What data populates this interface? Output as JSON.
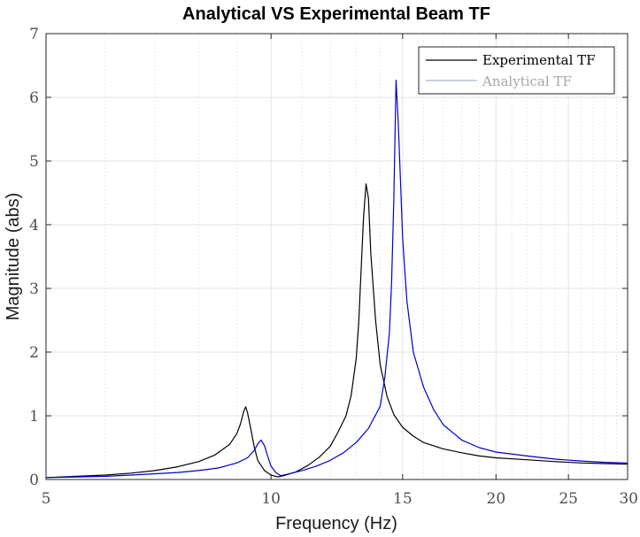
{
  "chart_data": {
    "type": "line",
    "title": "Analytical VS Experimental Beam TF",
    "xlabel": "Frequency  (Hz)",
    "ylabel": "Magnitude (abs)",
    "x_scale": "log",
    "xlim": [
      5,
      30
    ],
    "ylim": [
      0,
      7
    ],
    "x_ticks": [
      5,
      10,
      15,
      20,
      25,
      30
    ],
    "y_ticks": [
      0,
      1,
      2,
      3,
      4,
      5,
      6,
      7
    ],
    "grid": true,
    "legend": {
      "placement": "top-right"
    },
    "series": [
      {
        "name": "Experimental TF",
        "color": "#000000",
        "x": [
          5,
          5.5,
          6,
          6.5,
          7,
          7.5,
          8,
          8.4,
          8.8,
          9.0,
          9.1,
          9.2,
          9.25,
          9.3,
          9.4,
          9.5,
          9.6,
          9.8,
          10.0,
          10.2,
          10.4,
          10.8,
          11.2,
          11.6,
          12.0,
          12.3,
          12.6,
          12.8,
          13.0,
          13.1,
          13.2,
          13.3,
          13.4,
          13.5,
          13.6,
          13.8,
          14.0,
          14.3,
          14.6,
          15.0,
          15.5,
          16,
          17,
          18,
          19,
          20,
          22,
          24,
          26,
          28,
          30
        ],
        "y": [
          0.03,
          0.05,
          0.07,
          0.1,
          0.14,
          0.2,
          0.28,
          0.38,
          0.55,
          0.72,
          0.87,
          1.08,
          1.14,
          1.05,
          0.78,
          0.5,
          0.3,
          0.14,
          0.07,
          0.04,
          0.06,
          0.12,
          0.22,
          0.35,
          0.52,
          0.75,
          1.0,
          1.32,
          1.9,
          2.45,
          3.3,
          4.12,
          4.64,
          4.42,
          3.55,
          2.5,
          1.8,
          1.3,
          1.02,
          0.82,
          0.68,
          0.58,
          0.48,
          0.42,
          0.37,
          0.34,
          0.31,
          0.28,
          0.26,
          0.25,
          0.24
        ]
      },
      {
        "name": "Analytical TF",
        "color": "#0000cc",
        "x": [
          5,
          5.5,
          6,
          6.5,
          7,
          7.5,
          8,
          8.5,
          9.0,
          9.3,
          9.5,
          9.6,
          9.7,
          9.8,
          9.9,
          10.0,
          10.15,
          10.3,
          10.5,
          11.0,
          11.5,
          12.0,
          12.5,
          13.0,
          13.5,
          14.0,
          14.2,
          14.4,
          14.5,
          14.6,
          14.7,
          14.8,
          14.9,
          15.0,
          15.2,
          15.5,
          16.0,
          16.5,
          17,
          18,
          19,
          20,
          22,
          24,
          26,
          28,
          30
        ],
        "y": [
          0.03,
          0.04,
          0.05,
          0.07,
          0.09,
          0.11,
          0.14,
          0.18,
          0.26,
          0.34,
          0.46,
          0.56,
          0.62,
          0.53,
          0.36,
          0.21,
          0.11,
          0.06,
          0.08,
          0.14,
          0.21,
          0.3,
          0.42,
          0.58,
          0.8,
          1.15,
          1.6,
          2.3,
          3.1,
          4.4,
          6.27,
          5.6,
          4.7,
          3.8,
          2.8,
          2.0,
          1.45,
          1.1,
          0.86,
          0.62,
          0.5,
          0.43,
          0.37,
          0.32,
          0.29,
          0.27,
          0.26
        ]
      }
    ]
  }
}
